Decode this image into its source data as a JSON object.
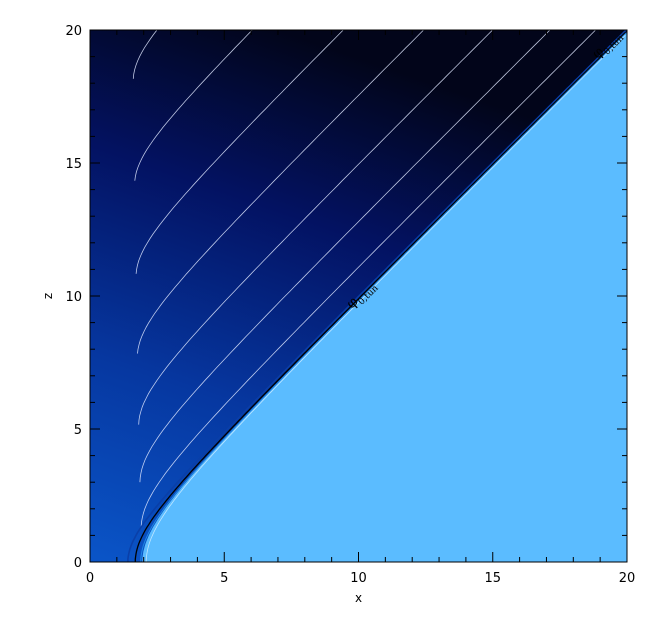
{
  "chart_data": {
    "type": "contour",
    "title": "",
    "xlabel": "x",
    "ylabel": "z",
    "xlim": [
      0,
      20
    ],
    "ylim": [
      0,
      20
    ],
    "xticks": [
      "0",
      "5",
      "10",
      "15",
      "20"
    ],
    "yticks": [
      "0",
      "5",
      "10",
      "15",
      "20"
    ],
    "grid": false,
    "colormap": {
      "interior_fill": "#5bbcff",
      "near_boundary": "#0a55c8",
      "far_field": "#02051a"
    },
    "contour_line_color": "#dfe8ff",
    "contour_count": 22,
    "boundary": {
      "description": "hyperbolic surface x = sqrt(a^2 + (m z)^2)",
      "a": 1.95,
      "slope_m": 1.0,
      "line_color": "#000000"
    },
    "annotations": [
      {
        "symbol": "φ",
        "subscript": "0,tun",
        "x": 9.75,
        "z": 9.5
      },
      {
        "symbol": "φ",
        "subscript": "0,tun",
        "x": 18.9,
        "z": 18.9
      }
    ]
  }
}
